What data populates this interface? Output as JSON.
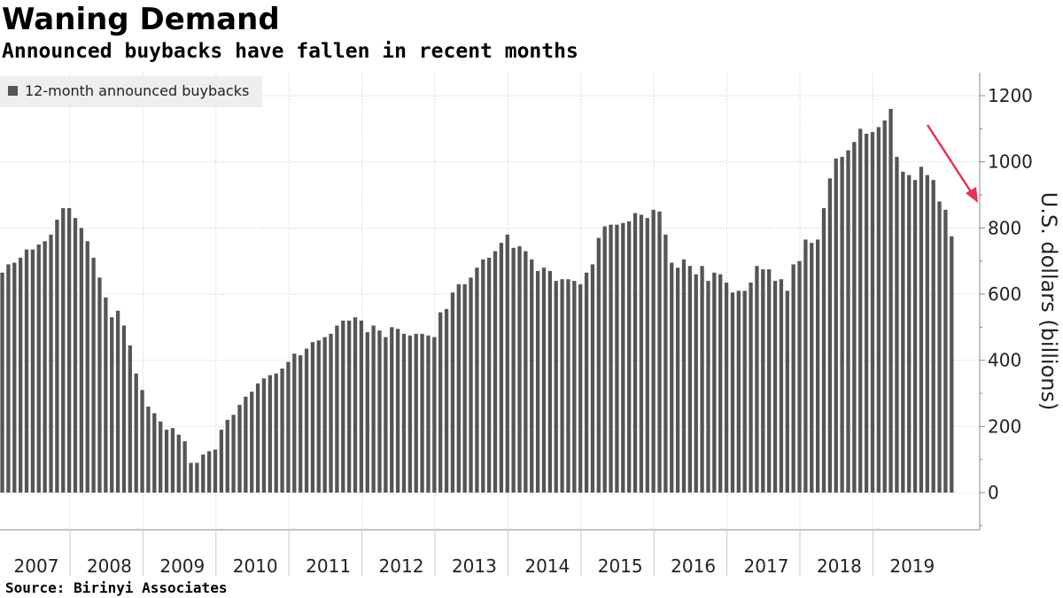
{
  "header": {
    "title": "Waning Demand",
    "subtitle": "Announced buybacks have fallen in recent months"
  },
  "footer": {
    "source": "Source:  Birinyi Associates"
  },
  "colors": {
    "bar": "#555555",
    "arrow": "#e8334f",
    "grid": "#c8c8c8",
    "legend_bg": "#eeeeee"
  },
  "chart_data": {
    "type": "bar",
    "legend": [
      "12-month announced buybacks"
    ],
    "legend_position": "top-left",
    "ylabel": "U.S. dollars (billions)",
    "y_axis_side": "right",
    "ylim": [
      -100,
      1280
    ],
    "yticks": [
      0,
      200,
      400,
      600,
      800,
      1000,
      1200
    ],
    "grid": true,
    "years": [
      "2007",
      "2008",
      "2009",
      "2010",
      "2011",
      "2012",
      "2013",
      "2014",
      "2015",
      "2016",
      "2017",
      "2018",
      "2019"
    ],
    "start": "2007-01",
    "frequency": "monthly",
    "annotation": "downward arrow pointing at recent decline",
    "series": [
      {
        "name": "12-month announced buybacks",
        "values": [
          665,
          690,
          695,
          710,
          735,
          735,
          750,
          760,
          780,
          825,
          860,
          860,
          830,
          800,
          760,
          710,
          650,
          590,
          530,
          550,
          505,
          445,
          360,
          310,
          260,
          240,
          215,
          190,
          195,
          175,
          155,
          90,
          90,
          115,
          125,
          130,
          190,
          220,
          235,
          265,
          290,
          305,
          330,
          345,
          355,
          360,
          375,
          395,
          420,
          415,
          435,
          455,
          460,
          470,
          480,
          505,
          520,
          520,
          530,
          520,
          485,
          505,
          490,
          470,
          500,
          495,
          480,
          475,
          480,
          480,
          475,
          470,
          545,
          555,
          605,
          630,
          630,
          650,
          680,
          705,
          710,
          730,
          755,
          780,
          740,
          745,
          730,
          705,
          670,
          680,
          670,
          640,
          645,
          645,
          640,
          630,
          665,
          690,
          770,
          805,
          810,
          810,
          815,
          820,
          845,
          840,
          830,
          855,
          850,
          780,
          695,
          680,
          705,
          685,
          660,
          685,
          640,
          665,
          660,
          635,
          605,
          610,
          610,
          635,
          685,
          675,
          675,
          640,
          645,
          610,
          690,
          700,
          765,
          755,
          765,
          860,
          950,
          1010,
          1015,
          1035,
          1060,
          1100,
          1085,
          1090,
          1105,
          1125,
          1160,
          1015,
          970,
          960,
          945,
          985,
          960,
          945,
          880,
          855,
          775
        ]
      }
    ]
  }
}
